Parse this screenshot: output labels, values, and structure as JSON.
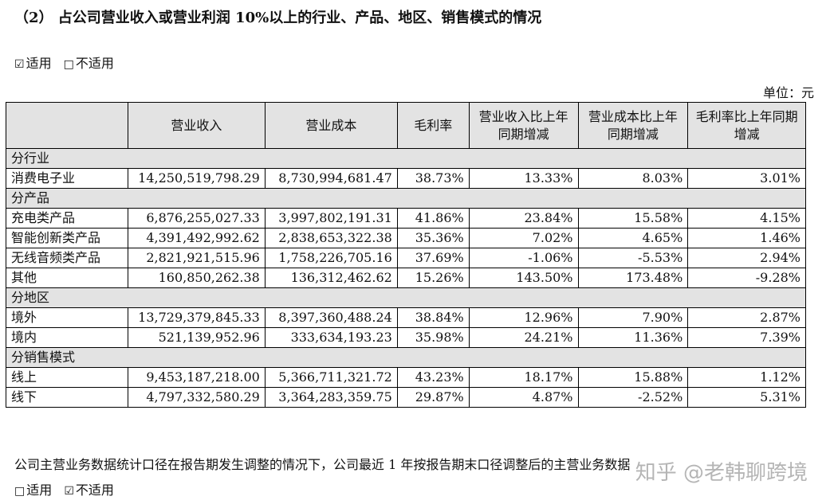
{
  "heading": "（2）  占公司营业收入或营业利润 10%以上的行业、产品、地区、销售模式的情况",
  "applicability_top": {
    "checked_box": "☑",
    "checked_label": "适用",
    "unchecked_box": "□",
    "unchecked_label": "不适用"
  },
  "unit_label": "单位：元",
  "table": {
    "headers": [
      "",
      "营业收入",
      "营业成本",
      "毛利率",
      "营业收入比上年同期增减",
      "营业成本比上年同期增减",
      "毛利率比上年同期增减"
    ],
    "sections": [
      {
        "title": "分行业",
        "rows": [
          [
            "消费电子业",
            "14,250,519,798.29",
            "8,730,994,681.47",
            "38.73%",
            "13.33%",
            "8.03%",
            "3.01%"
          ]
        ]
      },
      {
        "title": "分产品",
        "rows": [
          [
            "充电类产品",
            "6,876,255,027.33",
            "3,997,802,191.31",
            "41.86%",
            "23.84%",
            "15.58%",
            "4.15%"
          ],
          [
            "智能创新类产品",
            "4,391,492,992.62",
            "2,838,653,322.38",
            "35.36%",
            "7.02%",
            "4.65%",
            "1.46%"
          ],
          [
            "无线音频类产品",
            "2,821,921,515.96",
            "1,758,226,705.16",
            "37.69%",
            "-1.06%",
            "-5.53%",
            "2.94%"
          ],
          [
            "其他",
            "160,850,262.38",
            "136,312,462.62",
            "15.26%",
            "143.50%",
            "173.48%",
            "-9.28%"
          ]
        ]
      },
      {
        "title": "分地区",
        "rows": [
          [
            "境外",
            "13,729,379,845.33",
            "8,397,360,488.24",
            "38.84%",
            "12.96%",
            "7.90%",
            "2.87%"
          ],
          [
            "境内",
            "521,139,952.96",
            "333,634,193.23",
            "35.98%",
            "24.21%",
            "11.36%",
            "7.39%"
          ]
        ]
      },
      {
        "title": "分销售模式",
        "rows": [
          [
            "线上",
            "9,453,187,218.00",
            "5,366,711,321.72",
            "43.23%",
            "18.17%",
            "15.88%",
            "1.12%"
          ],
          [
            "线下",
            "4,797,332,580.29",
            "3,364,283,359.75",
            "29.87%",
            "4.87%",
            "-2.52%",
            "5.31%"
          ]
        ]
      }
    ]
  },
  "note": "公司主营业务数据统计口径在报告期发生调整的情况下，公司最近 1 年按报告期末口径调整后的主营业务数据",
  "applicability_bottom": {
    "unchecked_box": "□",
    "unchecked_label": "适用",
    "checked_box": "☑",
    "checked_label": "不适用"
  },
  "watermark": "知乎 @老韩聊跨境"
}
